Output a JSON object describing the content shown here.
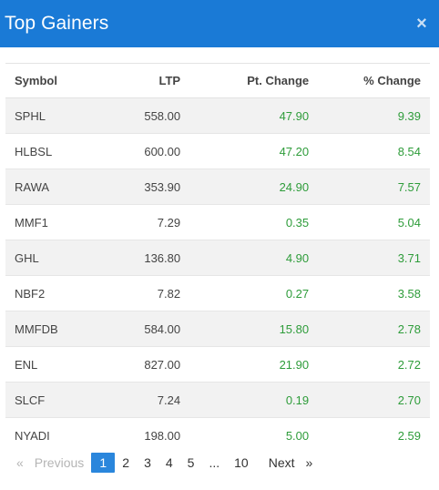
{
  "modal": {
    "title": "Top Gainers",
    "close_icon": "×"
  },
  "colors": {
    "header_bg": "#1a7ad6",
    "positive": "#2e9c3a",
    "active_page": "#2a86dc"
  },
  "table": {
    "headers": {
      "symbol": "Symbol",
      "ltp": "LTP",
      "pt_change": "Pt. Change",
      "pct_change": "% Change"
    },
    "rows": [
      {
        "symbol": "SPHL",
        "ltp": "558.00",
        "pt_change": "47.90",
        "pct_change": "9.39"
      },
      {
        "symbol": "HLBSL",
        "ltp": "600.00",
        "pt_change": "47.20",
        "pct_change": "8.54"
      },
      {
        "symbol": "RAWA",
        "ltp": "353.90",
        "pt_change": "24.90",
        "pct_change": "7.57"
      },
      {
        "symbol": "MMF1",
        "ltp": "7.29",
        "pt_change": "0.35",
        "pct_change": "5.04"
      },
      {
        "symbol": "GHL",
        "ltp": "136.80",
        "pt_change": "4.90",
        "pct_change": "3.71"
      },
      {
        "symbol": "NBF2",
        "ltp": "7.82",
        "pt_change": "0.27",
        "pct_change": "3.58"
      },
      {
        "symbol": "MMFDB",
        "ltp": "584.00",
        "pt_change": "15.80",
        "pct_change": "2.78"
      },
      {
        "symbol": "ENL",
        "ltp": "827.00",
        "pt_change": "21.90",
        "pct_change": "2.72"
      },
      {
        "symbol": "SLCF",
        "ltp": "7.24",
        "pt_change": "0.19",
        "pct_change": "2.70"
      },
      {
        "symbol": "NYADI",
        "ltp": "198.00",
        "pt_change": "5.00",
        "pct_change": "2.59"
      }
    ]
  },
  "pagination": {
    "previous_arrow": "«",
    "previous_label": "Previous",
    "pages": [
      "1",
      "2",
      "3",
      "4",
      "5"
    ],
    "ellipsis": "...",
    "last_page": "10",
    "next_label": "Next",
    "next_arrow": "»",
    "current_page": "1"
  }
}
